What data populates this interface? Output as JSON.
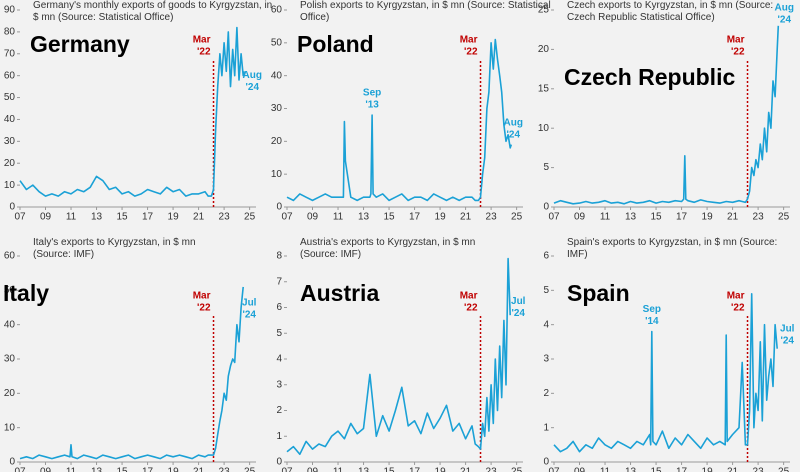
{
  "chart_data": [
    {
      "type": "line",
      "title": "Germany",
      "subtitle": [
        "Germany's monthly exports of goods to Kyrgyzstan, in",
        "$ mn (Source: Statistical Office)"
      ],
      "x": [
        2007,
        2007.5,
        2008,
        2008.5,
        2009,
        2009.5,
        2010,
        2010.5,
        2011,
        2011.5,
        2012,
        2012.5,
        2013,
        2013.5,
        2014,
        2014.5,
        2015,
        2015.5,
        2016,
        2016.5,
        2017,
        2017.5,
        2018,
        2018.5,
        2019,
        2019.5,
        2020,
        2020.5,
        2021,
        2021.5,
        2021.75,
        2022,
        2022.17,
        2022.33,
        2022.5,
        2022.67,
        2022.83,
        2023,
        2023.17,
        2023.33,
        2023.5,
        2023.67,
        2023.83,
        2024,
        2024.17,
        2024.33,
        2024.5,
        2024.58
      ],
      "values": [
        12,
        8,
        10,
        7,
        5,
        6,
        5,
        7,
        6,
        8,
        7,
        9,
        14,
        12,
        8,
        9,
        6,
        7,
        5,
        6,
        8,
        7,
        6,
        9,
        7,
        8,
        5,
        6,
        6,
        7,
        5,
        5,
        8,
        35,
        55,
        70,
        60,
        75,
        62,
        80,
        55,
        72,
        60,
        82,
        58,
        70,
        60,
        62
      ],
      "color": "#1ba1d6",
      "xlim": [
        2007,
        2025.5
      ],
      "xticks": [
        {
          "value": 2007,
          "label": "07"
        },
        {
          "value": 2009,
          "label": "09"
        },
        {
          "value": 2011,
          "label": "11"
        },
        {
          "value": 2013,
          "label": "13"
        },
        {
          "value": 2015,
          "label": "15"
        },
        {
          "value": 2017,
          "label": "17"
        },
        {
          "value": 2019,
          "label": "19"
        },
        {
          "value": 2021,
          "label": "21"
        },
        {
          "value": 2023,
          "label": "23"
        },
        {
          "value": 2025,
          "label": "25"
        }
      ],
      "ylim": [
        0,
        90
      ],
      "yticks": [
        0,
        10,
        20,
        30,
        40,
        50,
        60,
        70,
        80,
        90
      ],
      "event": {
        "x": 2022.17,
        "label": [
          "Mar",
          "'22"
        ],
        "color": "#c00000"
      },
      "annotations": [
        {
          "x": 2024.58,
          "label": [
            "Aug",
            "'24"
          ]
        }
      ]
    },
    {
      "type": "line",
      "title": "Poland",
      "subtitle": [
        "Polish exports to Kyrgyzstan, in $ mn (Source: Statistical",
        "Office)"
      ],
      "x": [
        2007,
        2007.5,
        2008,
        2008.5,
        2009,
        2009.5,
        2010,
        2010.5,
        2011,
        2011.42,
        2011.5,
        2011.58,
        2012,
        2012.5,
        2013,
        2013.5,
        2013.58,
        2013.67,
        2013.75,
        2014,
        2014.5,
        2015,
        2015.5,
        2016,
        2016.5,
        2017,
        2017.5,
        2018,
        2018.5,
        2019,
        2019.5,
        2020,
        2020.5,
        2021,
        2021.5,
        2021.75,
        2022,
        2022.17,
        2022.33,
        2022.5,
        2022.67,
        2022.83,
        2023,
        2023.17,
        2023.33,
        2023.5,
        2023.67,
        2023.83,
        2024,
        2024.17,
        2024.33,
        2024.5,
        2024.58
      ],
      "values": [
        3,
        2,
        4,
        3,
        2,
        3,
        4,
        3,
        3,
        3,
        26,
        14,
        3,
        2,
        3,
        3,
        4,
        28,
        4,
        3,
        4,
        2,
        3,
        4,
        2,
        3,
        3,
        2,
        4,
        3,
        2,
        3,
        2,
        3,
        3,
        2,
        2,
        3,
        10,
        15,
        30,
        35,
        50,
        42,
        51,
        45,
        40,
        35,
        25,
        20,
        22,
        18,
        19
      ],
      "color": "#1ba1d6",
      "xlim": [
        2007,
        2025.5
      ],
      "xticks": [
        {
          "value": 2007,
          "label": "07"
        },
        {
          "value": 2009,
          "label": "09"
        },
        {
          "value": 2011,
          "label": "11"
        },
        {
          "value": 2013,
          "label": "13"
        },
        {
          "value": 2015,
          "label": "15"
        },
        {
          "value": 2017,
          "label": "17"
        },
        {
          "value": 2019,
          "label": "19"
        },
        {
          "value": 2021,
          "label": "21"
        },
        {
          "value": 2023,
          "label": "23"
        },
        {
          "value": 2025,
          "label": "25"
        }
      ],
      "ylim": [
        0,
        60
      ],
      "yticks": [
        0,
        10,
        20,
        30,
        40,
        50,
        60
      ],
      "event": {
        "x": 2022.17,
        "label": [
          "Mar",
          "'22"
        ],
        "color": "#c00000"
      },
      "annotations": [
        {
          "x": 2013.67,
          "label": [
            "Sep",
            "'13"
          ]
        },
        {
          "x": 2024.58,
          "label": [
            "Aug",
            "'24"
          ]
        }
      ]
    },
    {
      "type": "line",
      "title": "Czech Republic",
      "subtitle": [
        "Czech exports to Kyrgyzstan, in $ mn (Source:",
        "Czech Republic Statistical Office)"
      ],
      "x": [
        2007,
        2007.5,
        2008,
        2008.5,
        2009,
        2009.5,
        2010,
        2010.5,
        2011,
        2011.5,
        2012,
        2012.5,
        2013,
        2013.5,
        2014,
        2014.5,
        2015,
        2015.5,
        2016,
        2016.5,
        2017,
        2017.17,
        2017.25,
        2017.33,
        2017.5,
        2018,
        2018.5,
        2019,
        2019.5,
        2020,
        2020.5,
        2021,
        2021.5,
        2021.75,
        2022,
        2022.17,
        2022.33,
        2022.5,
        2022.67,
        2022.83,
        2023,
        2023.17,
        2023.33,
        2023.5,
        2023.67,
        2023.83,
        2024,
        2024.17,
        2024.33,
        2024.5,
        2024.58
      ],
      "values": [
        0.5,
        0.8,
        0.6,
        0.4,
        0.5,
        0.7,
        0.5,
        0.6,
        0.8,
        0.5,
        0.6,
        0.4,
        0.7,
        0.5,
        0.6,
        0.8,
        0.5,
        0.7,
        0.6,
        0.8,
        0.7,
        1,
        6.5,
        1,
        0.8,
        0.6,
        0.9,
        0.7,
        0.6,
        0.5,
        0.7,
        0.6,
        0.8,
        0.7,
        0.6,
        1,
        2,
        5,
        4,
        6,
        5,
        8,
        6,
        10,
        7,
        12,
        10,
        16,
        14,
        20,
        23
      ],
      "color": "#1ba1d6",
      "xlim": [
        2007,
        2025.5
      ],
      "xticks": [
        {
          "value": 2007,
          "label": "07"
        },
        {
          "value": 2009,
          "label": "09"
        },
        {
          "value": 2011,
          "label": "11"
        },
        {
          "value": 2013,
          "label": "13"
        },
        {
          "value": 2015,
          "label": "15"
        },
        {
          "value": 2017,
          "label": "17"
        },
        {
          "value": 2019,
          "label": "19"
        },
        {
          "value": 2021,
          "label": "21"
        },
        {
          "value": 2023,
          "label": "23"
        },
        {
          "value": 2025,
          "label": "25"
        }
      ],
      "ylim": [
        0,
        25
      ],
      "yticks": [
        0,
        5,
        10,
        15,
        20,
        25
      ],
      "event": {
        "x": 2022.17,
        "label": [
          "Mar",
          "'22"
        ],
        "color": "#c00000"
      },
      "annotations": [
        {
          "x": 2024.58,
          "label": [
            "Aug",
            "'24"
          ]
        }
      ]
    },
    {
      "type": "line",
      "title": "Italy",
      "subtitle": [
        "Italy's exports to Kyrgyzstan, in $ mn",
        "(Source: IMF)"
      ],
      "x": [
        2007,
        2007.5,
        2008,
        2008.5,
        2009,
        2009.5,
        2010,
        2010.5,
        2010.92,
        2011,
        2011.08,
        2011.5,
        2012,
        2012.5,
        2013,
        2013.5,
        2014,
        2014.5,
        2015,
        2015.5,
        2016,
        2016.5,
        2017,
        2017.5,
        2018,
        2018.5,
        2019,
        2019.5,
        2020,
        2020.5,
        2021,
        2021.5,
        2021.75,
        2022,
        2022.17,
        2022.33,
        2022.5,
        2022.67,
        2022.83,
        2023,
        2023.17,
        2023.33,
        2023.5,
        2023.67,
        2023.83,
        2024,
        2024.17,
        2024.33,
        2024.5
      ],
      "values": [
        1,
        1.5,
        1,
        2,
        1.5,
        1,
        1.5,
        2,
        1.5,
        5,
        1.5,
        1,
        2,
        1.5,
        1,
        2,
        1.5,
        1,
        1.5,
        2,
        1,
        1.5,
        2,
        1.5,
        1,
        2,
        1.5,
        2,
        1.5,
        1,
        2,
        1.5,
        2,
        2,
        2,
        4,
        8,
        12,
        15,
        20,
        18,
        25,
        28,
        30,
        29,
        40,
        35,
        45,
        51
      ],
      "color": "#1ba1d6",
      "xlim": [
        2007,
        2025.5
      ],
      "xticks": [
        {
          "value": 2007,
          "label": "07"
        },
        {
          "value": 2009,
          "label": "09"
        },
        {
          "value": 2011,
          "label": "11"
        },
        {
          "value": 2013,
          "label": "13"
        },
        {
          "value": 2015,
          "label": "15"
        },
        {
          "value": 2017,
          "label": "17"
        },
        {
          "value": 2019,
          "label": "19"
        },
        {
          "value": 2021,
          "label": "21"
        },
        {
          "value": 2023,
          "label": "23"
        },
        {
          "value": 2025,
          "label": "25"
        }
      ],
      "ylim": [
        0,
        60
      ],
      "yticks": [
        0,
        10,
        20,
        30,
        40,
        50,
        60
      ],
      "event": {
        "x": 2022.17,
        "label": [
          "Mar",
          "'22"
        ],
        "color": "#c00000"
      },
      "annotations": [
        {
          "x": 2024.5,
          "label": [
            "Jul",
            "'24"
          ]
        }
      ]
    },
    {
      "type": "line",
      "title": "Austria",
      "subtitle": [
        "Austria's exports to Kyrgyzstan, in $ mn",
        "(Source: IMF)"
      ],
      "x": [
        2007,
        2007.5,
        2008,
        2008.5,
        2009,
        2009.5,
        2010,
        2010.5,
        2011,
        2011.5,
        2012,
        2012.5,
        2013,
        2013.5,
        2014,
        2014.5,
        2015,
        2015.5,
        2016,
        2016.5,
        2017,
        2017.5,
        2018,
        2018.5,
        2019,
        2019.5,
        2020,
        2020.5,
        2021,
        2021.5,
        2021.75,
        2022,
        2022.17,
        2022.33,
        2022.5,
        2022.67,
        2022.83,
        2023,
        2023.17,
        2023.33,
        2023.5,
        2023.67,
        2023.83,
        2024,
        2024.17,
        2024.33,
        2024.5
      ],
      "values": [
        0.4,
        0.6,
        0.3,
        0.8,
        0.5,
        0.7,
        0.6,
        1.0,
        1.2,
        0.9,
        1.5,
        1.1,
        1.3,
        3.4,
        1.0,
        1.8,
        1.2,
        2.0,
        2.9,
        1.4,
        1.6,
        1.1,
        1.9,
        1.3,
        1.7,
        2.2,
        1.2,
        1.5,
        0.9,
        1.4,
        0.7,
        0.6,
        0.5,
        1.5,
        1,
        2.5,
        1.2,
        3,
        1.5,
        4,
        2,
        4.5,
        2.5,
        5.5,
        3,
        7.9,
        5.7
      ],
      "color": "#1ba1d6",
      "xlim": [
        2007,
        2025.5
      ],
      "xticks": [
        {
          "value": 2007,
          "label": "07"
        },
        {
          "value": 2009,
          "label": "09"
        },
        {
          "value": 2011,
          "label": "11"
        },
        {
          "value": 2013,
          "label": "13"
        },
        {
          "value": 2015,
          "label": "15"
        },
        {
          "value": 2017,
          "label": "17"
        },
        {
          "value": 2019,
          "label": "19"
        },
        {
          "value": 2021,
          "label": "21"
        },
        {
          "value": 2023,
          "label": "23"
        },
        {
          "value": 2025,
          "label": "25"
        }
      ],
      "ylim": [
        0,
        8
      ],
      "yticks": [
        0,
        1,
        2,
        3,
        4,
        5,
        6,
        7,
        8
      ],
      "event": {
        "x": 2022.17,
        "label": [
          "Mar",
          "'22"
        ],
        "color": "#c00000"
      },
      "annotations": [
        {
          "x": 2024.5,
          "label": [
            "Jul",
            "'24"
          ]
        }
      ]
    },
    {
      "type": "line",
      "title": "Spain",
      "subtitle": [
        "Spain's exports to Kyrgyzstan, in $ mn (Source:",
        "IMF)"
      ],
      "x": [
        2007,
        2007.5,
        2008,
        2008.5,
        2009,
        2009.5,
        2010,
        2010.5,
        2011,
        2011.5,
        2012,
        2012.5,
        2013,
        2013.5,
        2014,
        2014.5,
        2014.58,
        2014.67,
        2014.75,
        2015,
        2015.5,
        2016,
        2016.5,
        2017,
        2017.5,
        2018,
        2018.5,
        2019,
        2019.5,
        2020,
        2020.42,
        2020.5,
        2020.58,
        2021,
        2021.5,
        2021.75,
        2022,
        2022.17,
        2022.33,
        2022.5,
        2022.67,
        2022.83,
        2023,
        2023.17,
        2023.33,
        2023.5,
        2023.67,
        2023.83,
        2024,
        2024.17,
        2024.33,
        2024.5
      ],
      "values": [
        0.5,
        0.3,
        0.4,
        0.6,
        0.3,
        0.5,
        0.4,
        0.7,
        0.5,
        0.4,
        0.6,
        0.5,
        0.4,
        0.6,
        0.5,
        0.8,
        0.5,
        3.8,
        0.6,
        0.5,
        0.9,
        0.4,
        0.7,
        0.5,
        0.8,
        0.6,
        0.4,
        0.7,
        0.5,
        0.6,
        0.5,
        3.7,
        0.6,
        0.8,
        1.0,
        2.9,
        0.5,
        0.5,
        1.5,
        4.9,
        1,
        2,
        1.5,
        3.5,
        1.2,
        4,
        1.8,
        2.5,
        3,
        2.2,
        4,
        3.3
      ],
      "color": "#1ba1d6",
      "xlim": [
        2007,
        2025.5
      ],
      "xticks": [
        {
          "value": 2007,
          "label": "07"
        },
        {
          "value": 2009,
          "label": "09"
        },
        {
          "value": 2011,
          "label": "11"
        },
        {
          "value": 2013,
          "label": "13"
        },
        {
          "value": 2015,
          "label": "15"
        },
        {
          "value": 2017,
          "label": "17"
        },
        {
          "value": 2019,
          "label": "19"
        },
        {
          "value": 2021,
          "label": "21"
        },
        {
          "value": 2023,
          "label": "23"
        },
        {
          "value": 2025,
          "label": "25"
        }
      ],
      "ylim": [
        0,
        6
      ],
      "yticks": [
        0,
        1,
        2,
        3,
        4,
        5,
        6
      ],
      "event": {
        "x": 2022.17,
        "label": [
          "Mar",
          "'22"
        ],
        "color": "#c00000"
      },
      "annotations": [
        {
          "x": 2014.67,
          "label": [
            "Sep",
            "'14"
          ]
        },
        {
          "x": 2024.5,
          "label": [
            "Jul",
            "'24"
          ]
        }
      ]
    }
  ]
}
